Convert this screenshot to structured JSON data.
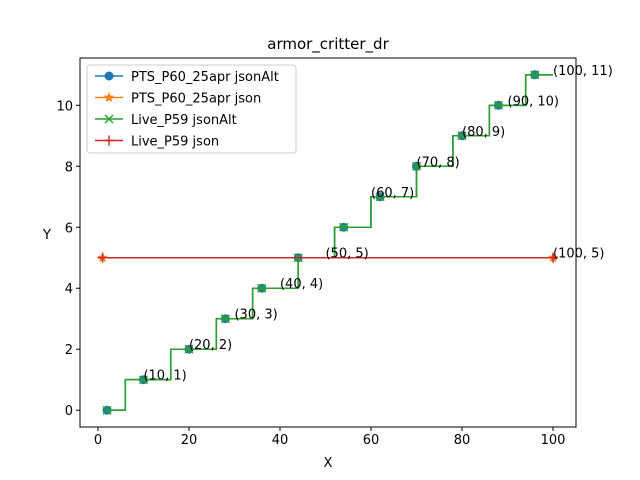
{
  "chart_data": {
    "type": "line",
    "title": "armor_critter_dr",
    "xlabel": "X",
    "ylabel": "Y",
    "xlim": [
      -3.95,
      105.05
    ],
    "ylim": [
      -0.55,
      11.55
    ],
    "xticks": [
      0,
      20,
      40,
      60,
      80,
      100
    ],
    "yticks": [
      0,
      2,
      4,
      6,
      8,
      10
    ],
    "grid": false,
    "legend_position": "upper left",
    "series": [
      {
        "name": "PTS_P60_25apr jsonAlt",
        "color": "#1f77b4",
        "marker": "circle",
        "step": true,
        "x": [
          2,
          4,
          6,
          8,
          10,
          12,
          14,
          16,
          18,
          20,
          22,
          24,
          26,
          28,
          30,
          32,
          34,
          36,
          38,
          40,
          42,
          44,
          46,
          48,
          50,
          52,
          54,
          56,
          58,
          60,
          62,
          64,
          66,
          68,
          70,
          72,
          74,
          76,
          78,
          80,
          82,
          84,
          86,
          88,
          90,
          92,
          94,
          96,
          98,
          100
        ],
        "y": [
          0,
          0,
          1,
          1,
          1,
          1,
          1,
          2,
          2,
          2,
          2,
          2,
          3,
          3,
          3,
          3,
          4,
          4,
          4,
          4,
          4,
          5,
          5,
          5,
          5,
          6,
          6,
          6,
          6,
          7,
          7,
          7,
          7,
          7,
          8,
          8,
          8,
          8,
          9,
          9,
          9,
          9,
          10,
          10,
          10,
          10,
          11,
          11,
          11,
          11
        ],
        "marker_x": [
          2,
          10,
          20,
          28,
          36,
          44,
          54,
          62,
          70,
          80,
          88,
          96
        ]
      },
      {
        "name": "PTS_P60_25apr json",
        "color": "#ff7f0e",
        "marker": "star",
        "step": false,
        "x": [
          1,
          100
        ],
        "y": [
          5,
          5
        ]
      },
      {
        "name": "Live_P59 jsonAlt",
        "color": "#2ca02c",
        "marker": "x",
        "step": true,
        "x": [
          2,
          4,
          6,
          8,
          10,
          12,
          14,
          16,
          18,
          20,
          22,
          24,
          26,
          28,
          30,
          32,
          34,
          36,
          38,
          40,
          42,
          44,
          46,
          48,
          50,
          52,
          54,
          56,
          58,
          60,
          62,
          64,
          66,
          68,
          70,
          72,
          74,
          76,
          78,
          80,
          82,
          84,
          86,
          88,
          90,
          92,
          94,
          96,
          98,
          100
        ],
        "y": [
          0,
          0,
          1,
          1,
          1,
          1,
          1,
          2,
          2,
          2,
          2,
          2,
          3,
          3,
          3,
          3,
          4,
          4,
          4,
          4,
          4,
          5,
          5,
          5,
          5,
          6,
          6,
          6,
          6,
          7,
          7,
          7,
          7,
          7,
          8,
          8,
          8,
          8,
          9,
          9,
          9,
          9,
          10,
          10,
          10,
          10,
          11,
          11,
          11,
          11
        ],
        "marker_x": [
          2,
          10,
          20,
          28,
          36,
          44,
          54,
          62,
          70,
          80,
          88,
          96
        ]
      },
      {
        "name": "Live_P59 json",
        "color": "#d62728",
        "marker": "plus",
        "step": false,
        "x": [
          1,
          100
        ],
        "y": [
          5,
          5
        ]
      }
    ],
    "annotations": [
      {
        "text": "(10, 1)",
        "x": 10,
        "y": 1
      },
      {
        "text": "(20, 2)",
        "x": 20,
        "y": 2
      },
      {
        "text": "(30, 3)",
        "x": 30,
        "y": 3
      },
      {
        "text": "(40, 4)",
        "x": 40,
        "y": 4
      },
      {
        "text": "(50, 5)",
        "x": 50,
        "y": 5
      },
      {
        "text": "(60, 7)",
        "x": 60,
        "y": 7
      },
      {
        "text": "(70, 8)",
        "x": 70,
        "y": 8
      },
      {
        "text": "(80, 9)",
        "x": 80,
        "y": 9
      },
      {
        "text": "(90, 10)",
        "x": 90,
        "y": 10
      },
      {
        "text": "(100, 11)",
        "x": 100,
        "y": 11
      },
      {
        "text": "(100, 5)",
        "x": 100,
        "y": 5
      }
    ]
  }
}
